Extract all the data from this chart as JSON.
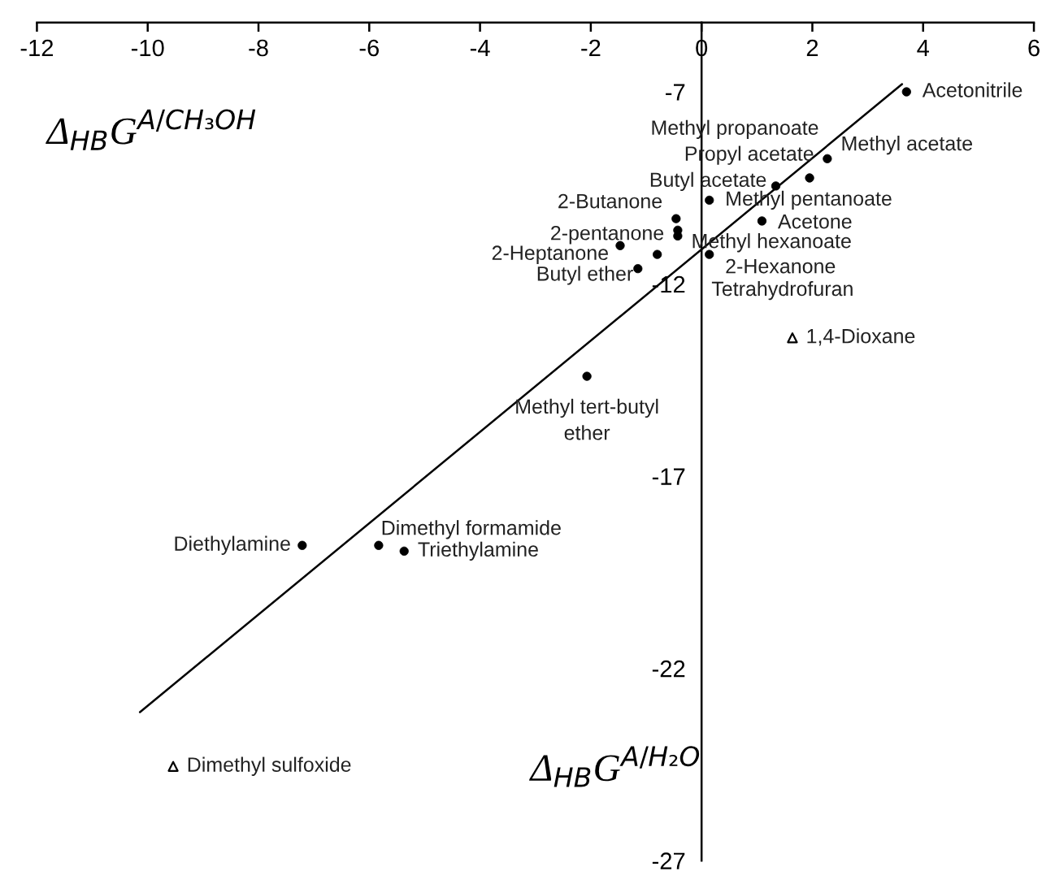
{
  "chart_data": {
    "type": "scatter",
    "xlabel": "Δ$_{HB}$G$^{A/H₂O}$",
    "ylabel": "Δ$_{HB}$G$^{A/CH₃OH}$",
    "xlim": [
      -12,
      6
    ],
    "xticks": [
      -12,
      -10,
      -8,
      -6,
      -4,
      -2,
      0,
      2,
      4,
      6
    ],
    "ylim": [
      -27,
      -5.2
    ],
    "yticks": [
      -7,
      -12,
      -17,
      -22,
      -27
    ],
    "grid": false,
    "series": [
      {
        "marker": "circle",
        "color": "#000000",
        "x": [
          3.7,
          2.27,
          2.2,
          1.95,
          1.34,
          0.14,
          -0.46,
          -0.43,
          1.09,
          -0.43,
          0.14,
          -1.47,
          -0.8,
          -1.15,
          -2.07,
          -7.21,
          -5.83,
          -5.37
        ],
        "values": [
          -7.0,
          -8.74,
          null,
          -9.24,
          -9.45,
          -9.82,
          -10.3,
          -10.6,
          -10.36,
          -10.75,
          -11.23,
          -11.0,
          -11.23,
          -11.6,
          -14.4,
          -18.8,
          -18.8,
          -18.95
        ]
      },
      {
        "marker": "triangle",
        "color": "#000000",
        "x": [
          1.64,
          -9.54
        ],
        "values": [
          -13.4,
          -24.55
        ]
      },
      {
        "type": "line",
        "color": "#000000",
        "x": [
          -10.14,
          3.62
        ],
        "values": [
          -23.14,
          -6.8
        ]
      }
    ],
    "annotations": [
      {
        "text": "Acetonitrile",
        "x": 3.7,
        "y": -7.0
      },
      {
        "text": "Methyl acetate",
        "x": 2.27,
        "y": -8.74
      },
      {
        "text": "Methyl propanoate",
        "x": 2.2,
        "y": -8.8
      },
      {
        "text": "Propyl acetate",
        "x": 1.95,
        "y": -9.24
      },
      {
        "text": "Butyl acetate",
        "x": 1.34,
        "y": -9.45
      },
      {
        "text": "Methyl pentanoate",
        "x": 0.14,
        "y": -9.82
      },
      {
        "text": "2-Butanone",
        "x": -0.46,
        "y": -10.3
      },
      {
        "text": "2-pentanone",
        "x": -0.43,
        "y": -10.6
      },
      {
        "text": "Acetone",
        "x": 1.09,
        "y": -10.36
      },
      {
        "text": "Methyl hexanoate",
        "x": -0.43,
        "y": -10.75
      },
      {
        "text": "2-Hexanone",
        "x": 0.14,
        "y": -11.23
      },
      {
        "text": "2-Heptanone",
        "x": -1.47,
        "y": -11.0
      },
      {
        "text": "Tetrahydrofuran",
        "x": -0.8,
        "y": -11.23
      },
      {
        "text": "Butyl ether",
        "x": -1.15,
        "y": -11.6
      },
      {
        "text": "Methyl tert-butyl\nether",
        "x": -2.07,
        "y": -14.4
      },
      {
        "text": "Diethylamine",
        "x": -7.21,
        "y": -18.8
      },
      {
        "text": "Dimethyl formamide",
        "x": -5.83,
        "y": -18.8
      },
      {
        "text": "Triethylamine",
        "x": -5.37,
        "y": -18.95
      },
      {
        "text": "1,4-Dioxane",
        "x": 1.64,
        "y": -13.4
      },
      {
        "text": "Dimethyl sulfoxide",
        "x": -9.54,
        "y": -24.55
      }
    ]
  }
}
